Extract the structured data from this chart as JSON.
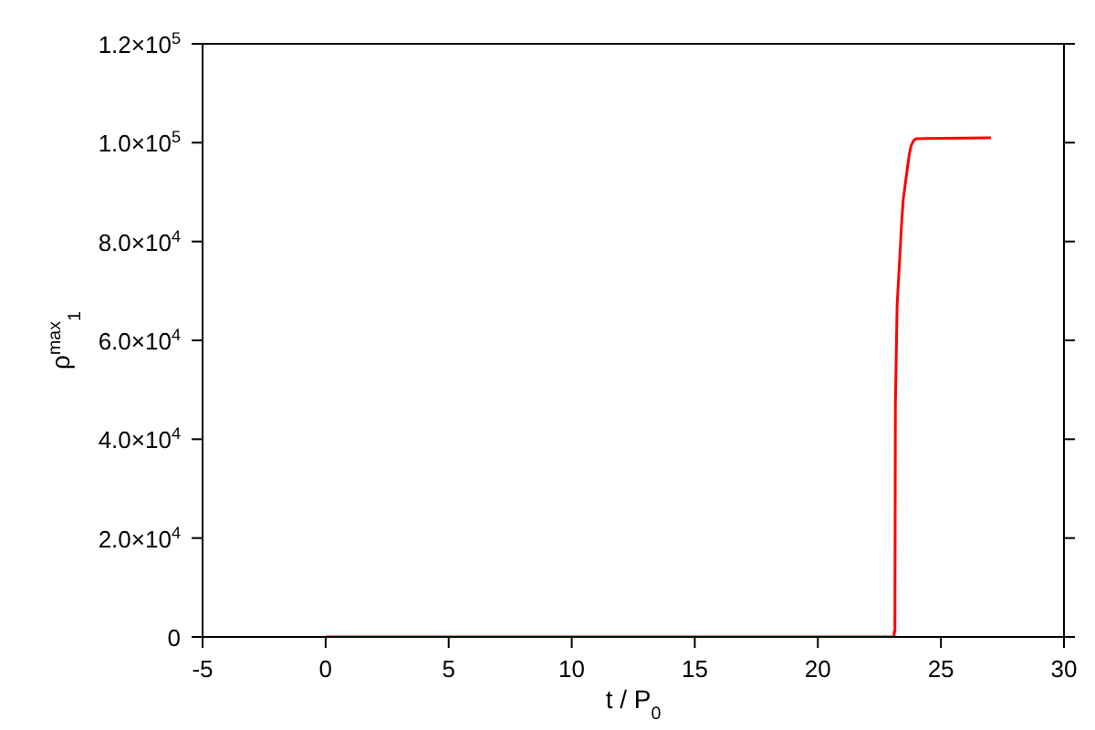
{
  "chart_data": {
    "type": "line",
    "xlabel": "t / P$_{0}$",
    "ylabel": "ρ$^{max}$$_{1}$",
    "series": [
      {
        "color": "#ff0000",
        "x": [
          0,
          23.1,
          23.1,
          23.13,
          23.15,
          23.22,
          23.33,
          23.4,
          23.47,
          23.57,
          23.65,
          23.72,
          23.79,
          23.89,
          23.99,
          27.03
        ],
        "values": [
          0,
          0,
          1000,
          1000,
          47000,
          67000,
          77000,
          83500,
          88600,
          92300,
          95300,
          97800,
          99400,
          100400,
          100800,
          101000
        ]
      }
    ],
    "xlim": [
      -5,
      30
    ],
    "xticks": [
      -5,
      0,
      5,
      10,
      15,
      20,
      25,
      30
    ],
    "ylim": [
      0,
      120000
    ],
    "yticks": [
      {
        "value": 0,
        "label": "0"
      },
      {
        "value": 20000,
        "label": "2.0×10$^{4}$"
      },
      {
        "value": 40000,
        "label": "4.0×10$^{4}$"
      },
      {
        "value": 60000,
        "label": "6.0×10$^{4}$"
      },
      {
        "value": 80000,
        "label": "8.0×10$^{4}$"
      },
      {
        "value": 100000,
        "label": "1.0×10$^{5}$"
      },
      {
        "value": 120000,
        "label": "1.2×10$^{5}$"
      }
    ],
    "grid": false,
    "marker": "none",
    "line_style": "solid"
  }
}
